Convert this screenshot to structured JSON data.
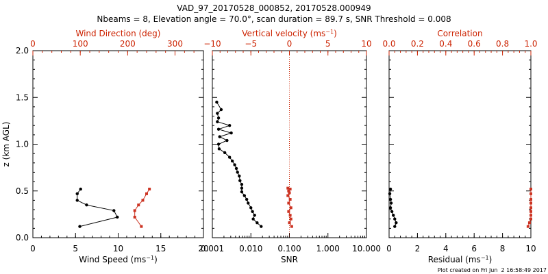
{
  "figure": {
    "title_line1": "VAD_97_20170528_000852, 20170528.000949",
    "title_line2": "Nbeams = 8, Elevation angle = 70.0°, scan duration = 89.7 s, SNR Threshold = 0.008",
    "footer": "Plot created on Fri Jun  2 16:58:49 2017",
    "colors": {
      "axis": "#000000",
      "secondary": "#cc2200",
      "series_black": "#000000",
      "series_red": "#cc3322"
    }
  },
  "chart_data": [
    {
      "type": "line",
      "panel": "wind",
      "ylabel": "z (km AGL)",
      "ylim": [
        0,
        2
      ],
      "yticks": [
        "0.0",
        "0.5",
        "1.0",
        "1.5",
        "2.0"
      ],
      "bottom_axis": {
        "label": "Wind Speed (ms",
        "label_sup": "−1",
        "label_end": ")",
        "range": [
          0,
          20
        ],
        "scale": "linear",
        "ticks": [
          0,
          5,
          10,
          15,
          20
        ],
        "tick_labels": [
          "0",
          "5",
          "10",
          "15",
          "20"
        ]
      },
      "top_axis": {
        "label": "Wind Direction (deg)",
        "range": [
          0,
          360
        ],
        "scale": "linear",
        "ticks": [
          0,
          100,
          200,
          300
        ],
        "tick_labels": [
          "0",
          "100",
          "200",
          "300"
        ]
      },
      "series": [
        {
          "axis": "bottom",
          "color": "black",
          "marker": "circle",
          "x": [
            5.5,
            9.9,
            9.5,
            6.3,
            5.2,
            5.2,
            5.6
          ],
          "y": [
            0.12,
            0.22,
            0.29,
            0.35,
            0.4,
            0.47,
            0.52
          ]
        },
        {
          "axis": "top",
          "color": "red",
          "marker": "square",
          "x": [
            229,
            215,
            215,
            223,
            232,
            240,
            246
          ],
          "y": [
            0.12,
            0.22,
            0.29,
            0.35,
            0.4,
            0.47,
            0.52
          ]
        }
      ]
    },
    {
      "type": "line",
      "panel": "snr",
      "ylim": [
        0,
        2
      ],
      "bottom_axis": {
        "label": "SNR",
        "range": [
          0.001,
          10
        ],
        "scale": "log",
        "ticks": [
          0.001,
          0.01,
          0.1,
          1,
          10
        ],
        "tick_labels": [
          "0.001",
          "0.010",
          "0.100",
          "1.000",
          "10.000"
        ]
      },
      "top_axis": {
        "label": "Vertical velocity (ms",
        "label_sup": "−1",
        "label_end": ")",
        "range": [
          -10,
          10
        ],
        "scale": "linear",
        "ticks": [
          -10,
          -5,
          0,
          5,
          10
        ],
        "tick_labels": [
          "−10",
          "−5",
          "0",
          "5",
          "10"
        ]
      },
      "reference_line": {
        "axis": "top",
        "value": 0,
        "style": "dotted",
        "color": "red"
      },
      "series": [
        {
          "axis": "bottom",
          "color": "black",
          "marker": "circle",
          "x": [
            0.0185,
            0.0145,
            0.0115,
            0.0125,
            0.011,
            0.01,
            0.0085,
            0.0078,
            0.0068,
            0.0058,
            0.0058,
            0.0058,
            0.0052,
            0.005,
            0.0045,
            0.0042,
            0.0038,
            0.0033,
            0.0028,
            0.0021,
            0.0015,
            0.00145,
            0.0024,
            0.00155,
            0.0031,
            0.00145,
            0.0028,
            0.00135,
            0.00145,
            0.00135,
            0.0017,
            0.0013
          ],
          "y": [
            0.12,
            0.16,
            0.2,
            0.24,
            0.28,
            0.32,
            0.37,
            0.41,
            0.45,
            0.49,
            0.53,
            0.57,
            0.61,
            0.66,
            0.7,
            0.74,
            0.78,
            0.82,
            0.86,
            0.91,
            0.95,
            1.0,
            1.04,
            1.08,
            1.12,
            1.16,
            1.2,
            1.24,
            1.28,
            1.33,
            1.37,
            1.45
          ]
        },
        {
          "axis": "top",
          "color": "red",
          "marker": "square",
          "x": [
            0.3,
            0.0,
            0.2,
            0.1,
            -0.1,
            0.2,
            -0.1,
            0.1,
            -0.2,
            0.0,
            -0.1,
            0.1,
            -0.2
          ],
          "y": [
            0.12,
            0.16,
            0.2,
            0.24,
            0.28,
            0.32,
            0.37,
            0.41,
            0.45,
            0.48,
            0.5,
            0.52,
            0.53
          ]
        }
      ]
    },
    {
      "type": "line",
      "panel": "residual",
      "ylim": [
        0,
        2
      ],
      "bottom_axis": {
        "label": "Residual (ms",
        "label_sup": "−1",
        "label_end": ")",
        "range": [
          0,
          10
        ],
        "scale": "linear",
        "ticks": [
          0,
          2,
          4,
          6,
          8,
          10
        ],
        "tick_labels": [
          "0",
          "2",
          "4",
          "6",
          "8",
          "10"
        ]
      },
      "top_axis": {
        "label": "Correlation",
        "range": [
          0,
          1
        ],
        "scale": "linear",
        "ticks": [
          0,
          0.2,
          0.4,
          0.6,
          0.8,
          1.0
        ],
        "tick_labels": [
          "0.0",
          "0.2",
          "0.4",
          "0.6",
          "0.8",
          "1.0"
        ]
      },
      "series": [
        {
          "axis": "bottom",
          "color": "black",
          "marker": "circle",
          "x": [
            0.4,
            0.5,
            0.4,
            0.3,
            0.2,
            0.1,
            0.15,
            0.1,
            0.05,
            0.1
          ],
          "y": [
            0.12,
            0.16,
            0.2,
            0.24,
            0.28,
            0.32,
            0.37,
            0.41,
            0.47,
            0.52
          ]
        },
        {
          "axis": "top",
          "color": "red",
          "marker": "square",
          "x": [
            0.98,
            0.99,
            1.0,
            1.0,
            1.0,
            1.0,
            1.0,
            1.0,
            1.0,
            1.0
          ],
          "y": [
            0.12,
            0.16,
            0.2,
            0.24,
            0.28,
            0.32,
            0.37,
            0.41,
            0.47,
            0.52
          ]
        }
      ]
    }
  ]
}
